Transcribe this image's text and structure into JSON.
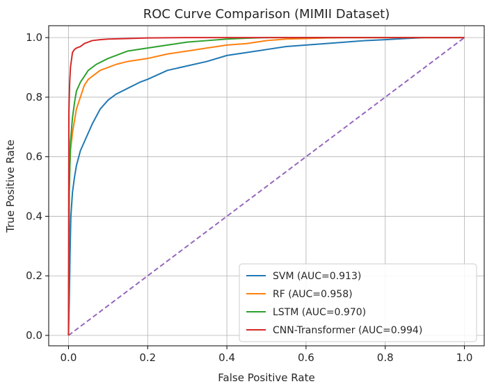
{
  "chart_data": {
    "type": "line",
    "title": "ROC Curve Comparison (MIMII Dataset)",
    "xlabel": "False Positive Rate",
    "ylabel": "True Positive Rate",
    "xlim": [
      -0.05,
      1.05
    ],
    "ylim": [
      -0.035,
      1.04
    ],
    "xticks": [
      0.0,
      0.2,
      0.4,
      0.6,
      0.8,
      1.0
    ],
    "xtick_labels": [
      "0.0",
      "0.2",
      "0.4",
      "0.6",
      "0.8",
      "1.0"
    ],
    "yticks": [
      0.0,
      0.2,
      0.4,
      0.6,
      0.8,
      1.0
    ],
    "ytick_labels": [
      "0.0",
      "0.2",
      "0.4",
      "0.6",
      "0.8",
      "1.0"
    ],
    "grid": true,
    "legend_position": "lower-right",
    "series": [
      {
        "name": "SVM (AUC=0.913)",
        "color": "#1f77b4",
        "x": [
          0.0,
          0.002,
          0.004,
          0.006,
          0.01,
          0.015,
          0.02,
          0.03,
          0.04,
          0.05,
          0.06,
          0.08,
          0.1,
          0.12,
          0.15,
          0.18,
          0.2,
          0.25,
          0.3,
          0.35,
          0.4,
          0.45,
          0.5,
          0.55,
          0.6,
          0.65,
          0.7,
          0.75,
          0.8,
          0.85,
          0.9,
          1.0
        ],
        "y": [
          0.0,
          0.12,
          0.28,
          0.4,
          0.48,
          0.53,
          0.57,
          0.62,
          0.65,
          0.68,
          0.71,
          0.76,
          0.79,
          0.81,
          0.83,
          0.85,
          0.86,
          0.89,
          0.905,
          0.92,
          0.94,
          0.95,
          0.96,
          0.97,
          0.975,
          0.98,
          0.985,
          0.99,
          0.993,
          0.997,
          1.0,
          1.0
        ]
      },
      {
        "name": "RF (AUC=0.958)",
        "color": "#ff7f0e",
        "x": [
          0.0,
          0.002,
          0.005,
          0.01,
          0.015,
          0.02,
          0.03,
          0.04,
          0.05,
          0.06,
          0.08,
          0.1,
          0.12,
          0.15,
          0.2,
          0.25,
          0.3,
          0.35,
          0.4,
          0.45,
          0.5,
          0.55,
          0.6,
          0.65,
          0.7,
          1.0
        ],
        "y": [
          0.0,
          0.52,
          0.62,
          0.68,
          0.72,
          0.76,
          0.8,
          0.84,
          0.86,
          0.87,
          0.89,
          0.9,
          0.91,
          0.92,
          0.93,
          0.945,
          0.955,
          0.965,
          0.975,
          0.98,
          0.99,
          0.995,
          0.997,
          0.999,
          1.0,
          1.0
        ]
      },
      {
        "name": "LSTM (AUC=0.970)",
        "color": "#2ca02c",
        "x": [
          0.0,
          0.002,
          0.005,
          0.01,
          0.015,
          0.02,
          0.03,
          0.04,
          0.05,
          0.07,
          0.1,
          0.13,
          0.15,
          0.2,
          0.25,
          0.3,
          0.35,
          0.4,
          0.45,
          0.5,
          0.6,
          1.0
        ],
        "y": [
          0.0,
          0.48,
          0.65,
          0.73,
          0.78,
          0.82,
          0.85,
          0.87,
          0.89,
          0.91,
          0.93,
          0.945,
          0.955,
          0.965,
          0.975,
          0.985,
          0.99,
          0.995,
          0.998,
          1.0,
          1.0,
          1.0
        ]
      },
      {
        "name": "CNN-Transformer (AUC=0.994)",
        "color": "#d62728",
        "x": [
          0.0,
          0.001,
          0.003,
          0.005,
          0.008,
          0.01,
          0.015,
          0.02,
          0.03,
          0.04,
          0.06,
          0.08,
          0.1,
          0.15,
          0.2,
          0.3,
          0.5,
          1.0
        ],
        "y": [
          0.0,
          0.75,
          0.85,
          0.9,
          0.93,
          0.95,
          0.96,
          0.965,
          0.97,
          0.98,
          0.99,
          0.993,
          0.995,
          0.997,
          0.999,
          1.0,
          1.0,
          1.0
        ]
      },
      {
        "name": "",
        "color": "#9467bd",
        "dashed": true,
        "x": [
          0.0,
          1.0
        ],
        "y": [
          0.0,
          1.0
        ]
      }
    ]
  }
}
